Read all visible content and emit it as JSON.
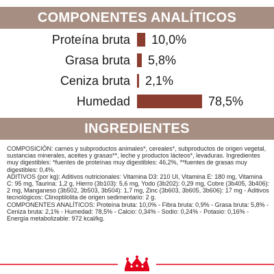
{
  "sections": {
    "components_title": "COMPONENTES ANALÍTICOS",
    "ingredients_title": "INGREDIENTES"
  },
  "colors": {
    "header_bg": "#a78e82",
    "bar": "#8b3d2f",
    "footer_line": "#e2001a"
  },
  "chart_data": {
    "type": "bar",
    "orientation": "horizontal",
    "categories": [
      "Proteína bruta",
      "Grasa bruta",
      "Ceniza bruta",
      "Humedad"
    ],
    "values": [
      10.0,
      5.8,
      2.1,
      78.5
    ],
    "value_labels": [
      "10,0%",
      "5,8%",
      "2,1%",
      "78,5%"
    ],
    "unit": "%",
    "xlim": [
      0,
      100
    ],
    "grid": false,
    "legend": "none"
  },
  "ingredients": {
    "paragraphs": [
      "COMPOSICIÓN: carnes y subproductos animales*, cereales*, subproductos de origen vegetal, sustancias minerales, aceites y grasas**, leche y productos lácteos*, levaduras. Ingredientes muy digestibles: *fuentes de proteínas muy digestibles: 46,2%, **fuentes de grasas muy digestibles: 0,4%.",
      "ADITIVOS (por kg): Aditivos nutricionales: Vitamina D3: 210 UI, Vitamina E: 180 mg, Vitamina C: 95 mg, Taurina: 1,2 g, Hierro (3b103): 5,6 mg, Yodo (3b202): 0,29 mg, Cobre (3b405, 3b406): 2 mg, Manganeso (3b502, 3b503, 3b504): 1,7 mg, Zinc (3b603, 3b605, 3b606): 17 mg - Aditivos tecnológicos: Clinoptilolita de origen sedimentario: 2 g.",
      "COMPONENTES ANALÍTICOS: Proteína bruta: 10,0% - Fibra bruta: 0,9% - Grasa bruta: 5,8% - Ceniza bruta: 2,1% - Humedad: 78,5% - Calcio: 0,34% - Sodio: 0,24% - Potasio: 0,16% - Energía metabolizable: 972 kcal/kg."
    ]
  },
  "footer": {
    "logo": "royal-canin-crown-logo"
  }
}
